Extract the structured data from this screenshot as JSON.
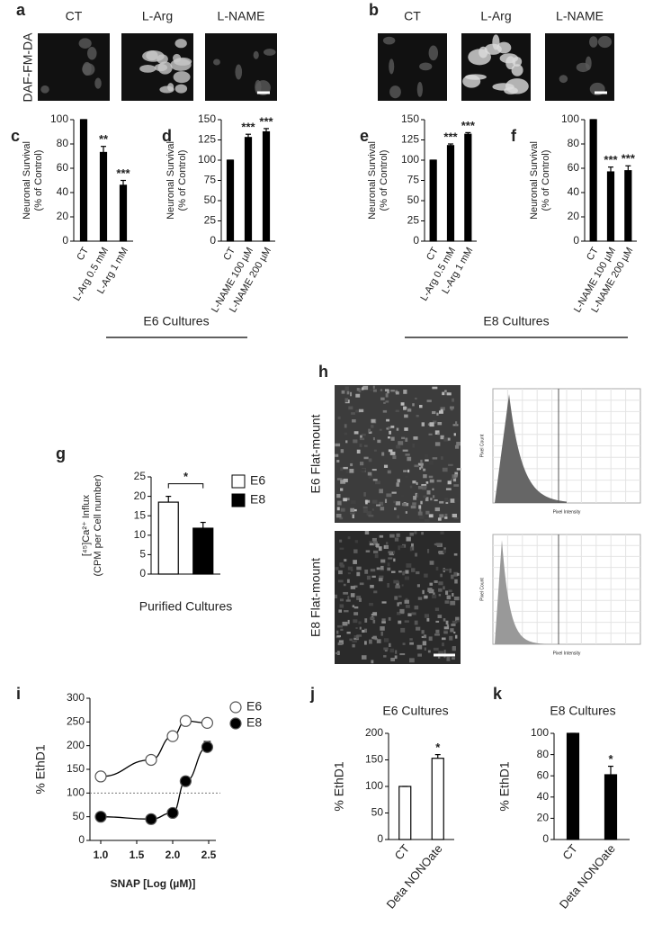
{
  "images": {
    "a": {
      "label": "a",
      "row_label": "DAF-FM-DA",
      "columns": [
        "CT",
        "L-Arg",
        "L-NAME"
      ]
    },
    "b": {
      "label": "b",
      "columns": [
        "CT",
        "L-Arg",
        "L-NAME"
      ]
    },
    "h": {
      "label": "h",
      "rows": [
        "E6 Flat-mount",
        "E8 Flat-mount"
      ],
      "histogram_ylabel": "Pixel Count",
      "histogram_xlabel": "Pixel Intensity"
    }
  },
  "group_labels": [
    "E6 Cultures",
    "E8 Cultures"
  ],
  "chart_data": [
    {
      "type": "bar",
      "label": "c",
      "ylabel": [
        "Neuronal Survival",
        "(% of Control)"
      ],
      "categories": [
        "CT",
        "L-Arg 0.5 mM",
        "L-Arg 1 mM"
      ],
      "values": [
        100,
        73,
        46
      ],
      "errors": [
        0,
        5,
        4
      ],
      "significance": [
        null,
        "**",
        "***"
      ],
      "color": "#000000",
      "ylim": [
        0,
        100
      ],
      "yticks": [
        0,
        20,
        40,
        60,
        80,
        100
      ]
    },
    {
      "type": "bar",
      "label": "d",
      "ylabel": [
        "Neuronal Survival",
        "(% of Control)"
      ],
      "categories": [
        "CT",
        "L-NAME 100 µM",
        "L-NAME 200 µM"
      ],
      "values": [
        100,
        128,
        135
      ],
      "errors": [
        0,
        4,
        4
      ],
      "significance": [
        null,
        "***",
        "***"
      ],
      "color": "#000000",
      "ylim": [
        0,
        150
      ],
      "yticks": [
        0,
        25,
        50,
        75,
        100,
        125,
        150
      ]
    },
    {
      "type": "bar",
      "label": "e",
      "ylabel": [
        "Neuronal Survival",
        "(% of Control)"
      ],
      "categories": [
        "CT",
        "L-Arg 0.5 mM",
        "L-Arg 1 mM"
      ],
      "values": [
        100,
        118,
        132
      ],
      "errors": [
        0,
        2,
        2
      ],
      "significance": [
        null,
        "***",
        "***"
      ],
      "color": "#000000",
      "ylim": [
        0,
        150
      ],
      "yticks": [
        0,
        25,
        50,
        75,
        100,
        125,
        150
      ]
    },
    {
      "type": "bar",
      "label": "f",
      "ylabel": [
        "Neuronal Survival",
        "(% of Control)"
      ],
      "categories": [
        "CT",
        "L-NAME 100 µM",
        "L-NAME 200 µM"
      ],
      "values": [
        100,
        57,
        58
      ],
      "errors": [
        0,
        4,
        4
      ],
      "significance": [
        null,
        "***",
        "***"
      ],
      "color": "#000000",
      "ylim": [
        0,
        100
      ],
      "yticks": [
        0,
        20,
        40,
        60,
        80,
        100
      ]
    },
    {
      "type": "bar",
      "label": "g",
      "ylabel": [
        "[⁴⁵]Ca²⁺ Influx",
        "(CPM per Cell number)"
      ],
      "xlabel": "Purified Cultures",
      "series": [
        {
          "name": "E6",
          "color": "#ffffff",
          "values": [
            18.5
          ],
          "errors": [
            1.5
          ]
        },
        {
          "name": "E8",
          "color": "#000000",
          "values": [
            11.8
          ],
          "errors": [
            1.5
          ]
        }
      ],
      "significance": "*",
      "ylim": [
        0,
        25
      ],
      "yticks": [
        0,
        5,
        10,
        15,
        20,
        25
      ]
    },
    {
      "type": "line",
      "label": "i",
      "ylabel": "% EthD1",
      "xlabel": "SNAP [Log (µM)]",
      "x": [
        1.0,
        1.7,
        2.0,
        2.18,
        2.48
      ],
      "series": [
        {
          "name": "E6",
          "color": "#ffffff",
          "values": [
            135,
            170,
            220,
            252,
            248
          ]
        },
        {
          "name": "E8",
          "color": "#000000",
          "values": [
            50,
            45,
            58,
            125,
            197
          ],
          "errors": [
            0,
            0,
            0,
            0,
            12
          ]
        }
      ],
      "reference_line": 100,
      "xlim": [
        0.85,
        2.6
      ],
      "xticks": [
        {
          "value": 1,
          "label": "1.0"
        },
        1.5,
        {
          "value": 2,
          "label": "2.0"
        },
        2.5
      ],
      "ylim": [
        0,
        300
      ],
      "yticks": [
        0,
        50,
        100,
        150,
        200,
        250,
        300
      ]
    },
    {
      "type": "bar",
      "label": "j",
      "title": "E6 Cultures",
      "ylabel": "% EthD1",
      "categories": [
        "CT",
        "Deta NONOate"
      ],
      "values": [
        100,
        153
      ],
      "errors": [
        0,
        7
      ],
      "significance": [
        null,
        "*"
      ],
      "color": "#ffffff",
      "ylim": [
        0,
        200
      ],
      "yticks": [
        0,
        50,
        100,
        150,
        200
      ]
    },
    {
      "type": "bar",
      "label": "k",
      "title": "E8 Cultures",
      "ylabel": "% EthD1",
      "categories": [
        "CT",
        "Deta NONOate"
      ],
      "values": [
        100,
        61
      ],
      "errors": [
        0,
        8
      ],
      "significance": [
        null,
        "*"
      ],
      "color": "#000000",
      "ylim": [
        0,
        100
      ],
      "yticks": [
        0,
        20,
        40,
        60,
        80,
        100
      ]
    }
  ]
}
